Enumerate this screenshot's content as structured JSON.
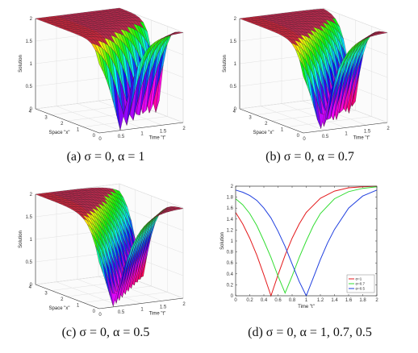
{
  "chart_data": [
    {
      "type": "surface",
      "caption": "(a) σ = 0,  α = 1",
      "alpha": 1,
      "xlabel": "Space \"x\"",
      "ylabel": "Time \"t\"",
      "zlabel": "Solution",
      "x_ticks": [
        "0",
        "1",
        "2",
        "3",
        "4"
      ],
      "t_ticks": [
        "0",
        "0.5",
        "1",
        "1.5",
        "2"
      ],
      "z_ticks": [
        "0",
        "0.5",
        "1",
        "1.5",
        "2"
      ],
      "xlim": [
        0,
        4
      ],
      "tlim": [
        0,
        2
      ],
      "zlim": [
        0,
        2
      ]
    },
    {
      "type": "surface",
      "caption": "(b) σ = 0,  α = 0.7",
      "alpha": 0.7,
      "xlabel": "Space \"x\"",
      "ylabel": "Time \"t\"",
      "zlabel": "Solution",
      "x_ticks": [
        "0",
        "1",
        "2",
        "3",
        "4"
      ],
      "t_ticks": [
        "0",
        "0.5",
        "1",
        "1.5",
        "2"
      ],
      "z_ticks": [
        "0",
        "0.5",
        "1",
        "1.5",
        "2"
      ],
      "xlim": [
        0,
        4
      ],
      "tlim": [
        0,
        2
      ],
      "zlim": [
        0,
        2
      ]
    },
    {
      "type": "surface",
      "caption": "(c) σ = 0,  α = 0.5",
      "alpha": 0.5,
      "xlabel": "Space \"x\"",
      "ylabel": "Time \"t\"",
      "zlabel": "Solution",
      "x_ticks": [
        "0",
        "1",
        "2",
        "3",
        "4"
      ],
      "t_ticks": [
        "0",
        "0.5",
        "1",
        "1.5",
        "2"
      ],
      "z_ticks": [
        "0",
        "0.5",
        "1",
        "1.5",
        "2"
      ],
      "xlim": [
        0,
        4
      ],
      "tlim": [
        0,
        2
      ],
      "zlim": [
        0,
        2
      ]
    },
    {
      "type": "line",
      "caption": "(d) σ = 0,  α = 1,  0.7,  0.5",
      "xlabel": "Time \"t\"",
      "ylabel": "Solution",
      "xlim": [
        0,
        2
      ],
      "ylim": [
        0,
        2
      ],
      "x_ticks": [
        "0",
        "0.2",
        "0.4",
        "0.6",
        "0.8",
        "1",
        "1.2",
        "1.4",
        "1.6",
        "1.8",
        "2"
      ],
      "y_ticks": [
        "0",
        "0.2",
        "0.4",
        "0.6",
        "0.8",
        "1",
        "1.2",
        "1.4",
        "1.6",
        "1.8",
        "2"
      ],
      "legend_position": "bottom-right",
      "series": [
        {
          "name": "α=1",
          "color": "#e41a1c",
          "x": [
            0,
            0.1,
            0.2,
            0.3,
            0.4,
            0.5,
            0.6,
            0.7,
            0.8,
            0.9,
            1.0,
            1.2,
            1.4,
            1.6,
            1.8,
            2.0
          ],
          "y": [
            1.52,
            1.31,
            1.05,
            0.74,
            0.38,
            0.0,
            0.38,
            0.74,
            1.05,
            1.31,
            1.52,
            1.78,
            1.91,
            1.97,
            1.99,
            2.0
          ]
        },
        {
          "name": "α=0.7",
          "color": "#33dd33",
          "x": [
            0,
            0.1,
            0.2,
            0.3,
            0.4,
            0.5,
            0.6,
            0.7,
            0.8,
            0.9,
            1.0,
            1.1,
            1.2,
            1.4,
            1.6,
            1.8,
            2.0
          ],
          "y": [
            1.77,
            1.66,
            1.5,
            1.28,
            1.0,
            0.7,
            0.36,
            0.05,
            0.36,
            0.7,
            1.0,
            1.28,
            1.5,
            1.77,
            1.9,
            1.96,
            1.99
          ]
        },
        {
          "name": "α=0.5",
          "color": "#1f3fdf",
          "x": [
            0,
            0.1,
            0.2,
            0.3,
            0.4,
            0.5,
            0.6,
            0.7,
            0.8,
            0.9,
            1.0,
            1.1,
            1.2,
            1.3,
            1.4,
            1.6,
            1.8,
            2.0
          ],
          "y": [
            1.93,
            1.89,
            1.83,
            1.74,
            1.6,
            1.42,
            1.18,
            0.9,
            0.58,
            0.26,
            0.0,
            0.33,
            0.66,
            0.96,
            1.21,
            1.6,
            1.82,
            1.93
          ]
        }
      ]
    }
  ]
}
